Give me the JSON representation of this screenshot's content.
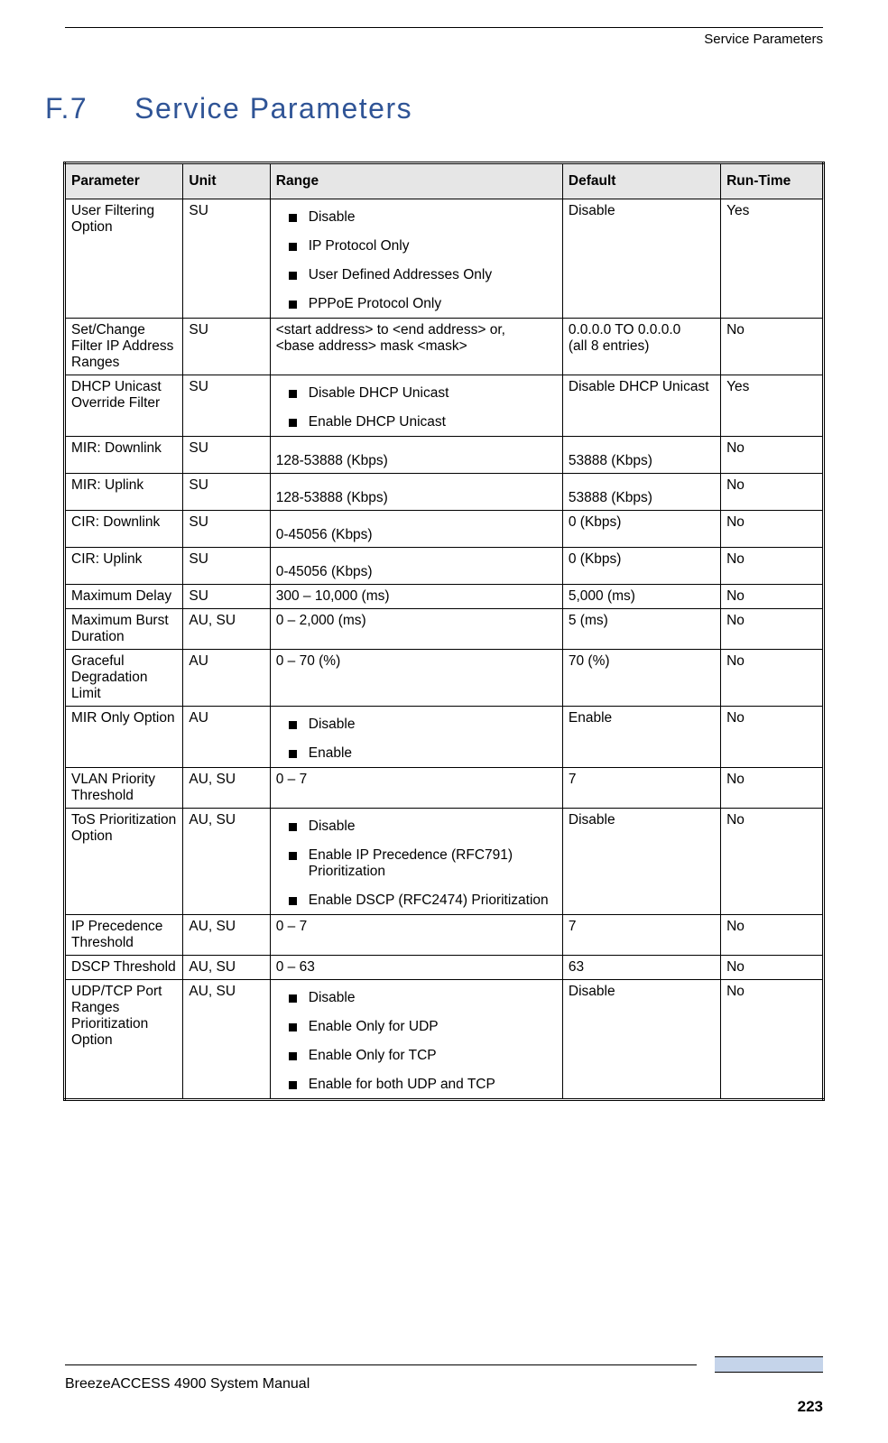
{
  "header": {
    "right": "Service Parameters"
  },
  "section": {
    "number": "F.7",
    "title": "Service Parameters"
  },
  "table": {
    "headers": {
      "parameter": "Parameter",
      "unit": "Unit",
      "range": "Range",
      "default": "Default",
      "runtime": "Run-Time"
    },
    "rows": [
      {
        "parameter": "User Filtering Option",
        "unit": "SU",
        "range_type": "bullets",
        "range_items": [
          "Disable",
          "IP Protocol Only",
          "User Defined Addresses Only",
          "PPPoE Protocol Only"
        ],
        "default": "Disable",
        "runtime": "Yes"
      },
      {
        "parameter": "Set/Change Filter IP Address Ranges",
        "unit": "SU",
        "range_type": "text",
        "range_text": "<start address> to <end address> or,\n<base address> mask <mask>",
        "default": "0.0.0.0 TO 0.0.0.0\n(all 8 entries)",
        "runtime": "No"
      },
      {
        "parameter": "DHCP Unicast Override Filter",
        "unit": "SU",
        "range_type": "bullets",
        "range_items": [
          "Disable DHCP Unicast",
          "Enable DHCP Unicast"
        ],
        "default": "Disable DHCP Unicast",
        "runtime": "Yes"
      },
      {
        "parameter": "MIR: Downlink",
        "unit": "SU",
        "range_type": "padtext",
        "range_text": "128-53888 (Kbps)",
        "default": "53888 (Kbps)",
        "default_pad": true,
        "runtime": "No"
      },
      {
        "parameter": "MIR: Uplink",
        "unit": "SU",
        "range_type": "padtext",
        "range_text": "128-53888 (Kbps)",
        "default": "53888 (Kbps)",
        "default_pad": true,
        "runtime": "No"
      },
      {
        "parameter": "CIR: Downlink",
        "unit": "SU",
        "range_type": "padtext",
        "range_text": "0-45056 (Kbps)",
        "default": "0 (Kbps)",
        "runtime": "No"
      },
      {
        "parameter": "CIR: Uplink",
        "unit": "SU",
        "range_type": "padtext",
        "range_text": "0-45056 (Kbps)",
        "default": "0 (Kbps)",
        "runtime": "No"
      },
      {
        "parameter": "Maximum Delay",
        "unit": "SU",
        "range_type": "text",
        "range_text": "300 – 10,000 (ms)",
        "default": "5,000 (ms)",
        "runtime": "No"
      },
      {
        "parameter": "Maximum Burst Duration",
        "unit": "AU, SU",
        "range_type": "text",
        "range_text": "0 – 2,000 (ms)",
        "default": "5 (ms)",
        "runtime": "No"
      },
      {
        "parameter": "Graceful Degradation Limit",
        "unit": "AU",
        "range_type": "text",
        "range_text": "0 – 70 (%)",
        "default": "70 (%)",
        "runtime": "No"
      },
      {
        "parameter": "MIR Only Option",
        "unit": "AU",
        "range_type": "bullets",
        "range_items": [
          "Disable",
          "Enable"
        ],
        "default": "Enable",
        "runtime": "No"
      },
      {
        "parameter": "VLAN Priority Threshold",
        "unit": "AU, SU",
        "range_type": "text",
        "range_text": "0 – 7",
        "default": "7",
        "runtime": "No"
      },
      {
        "parameter": "ToS Prioritization Option",
        "unit": "AU, SU",
        "range_type": "bullets",
        "range_items": [
          "Disable",
          "Enable IP Precedence (RFC791) Prioritization",
          "Enable DSCP (RFC2474) Prioritization"
        ],
        "default": "Disable",
        "runtime": "No"
      },
      {
        "parameter": "IP Precedence Threshold",
        "unit": "AU, SU",
        "range_type": "text",
        "range_text": "0 – 7",
        "default": "7",
        "runtime": "No"
      },
      {
        "parameter": "DSCP Threshold",
        "unit": "AU, SU",
        "range_type": "text",
        "range_text": "0 – 63",
        "default": "63",
        "runtime": "No"
      },
      {
        "parameter": "UDP/TCP Port Ranges Prioritization Option",
        "unit": "AU, SU",
        "range_type": "bullets",
        "range_items": [
          "Disable",
          "Enable Only for UDP",
          "Enable Only for TCP",
          "Enable for both UDP and TCP"
        ],
        "default": "Disable",
        "runtime": "No"
      }
    ]
  },
  "footer": {
    "manual": "BreezeACCESS 4900 System Manual",
    "page": "223"
  }
}
